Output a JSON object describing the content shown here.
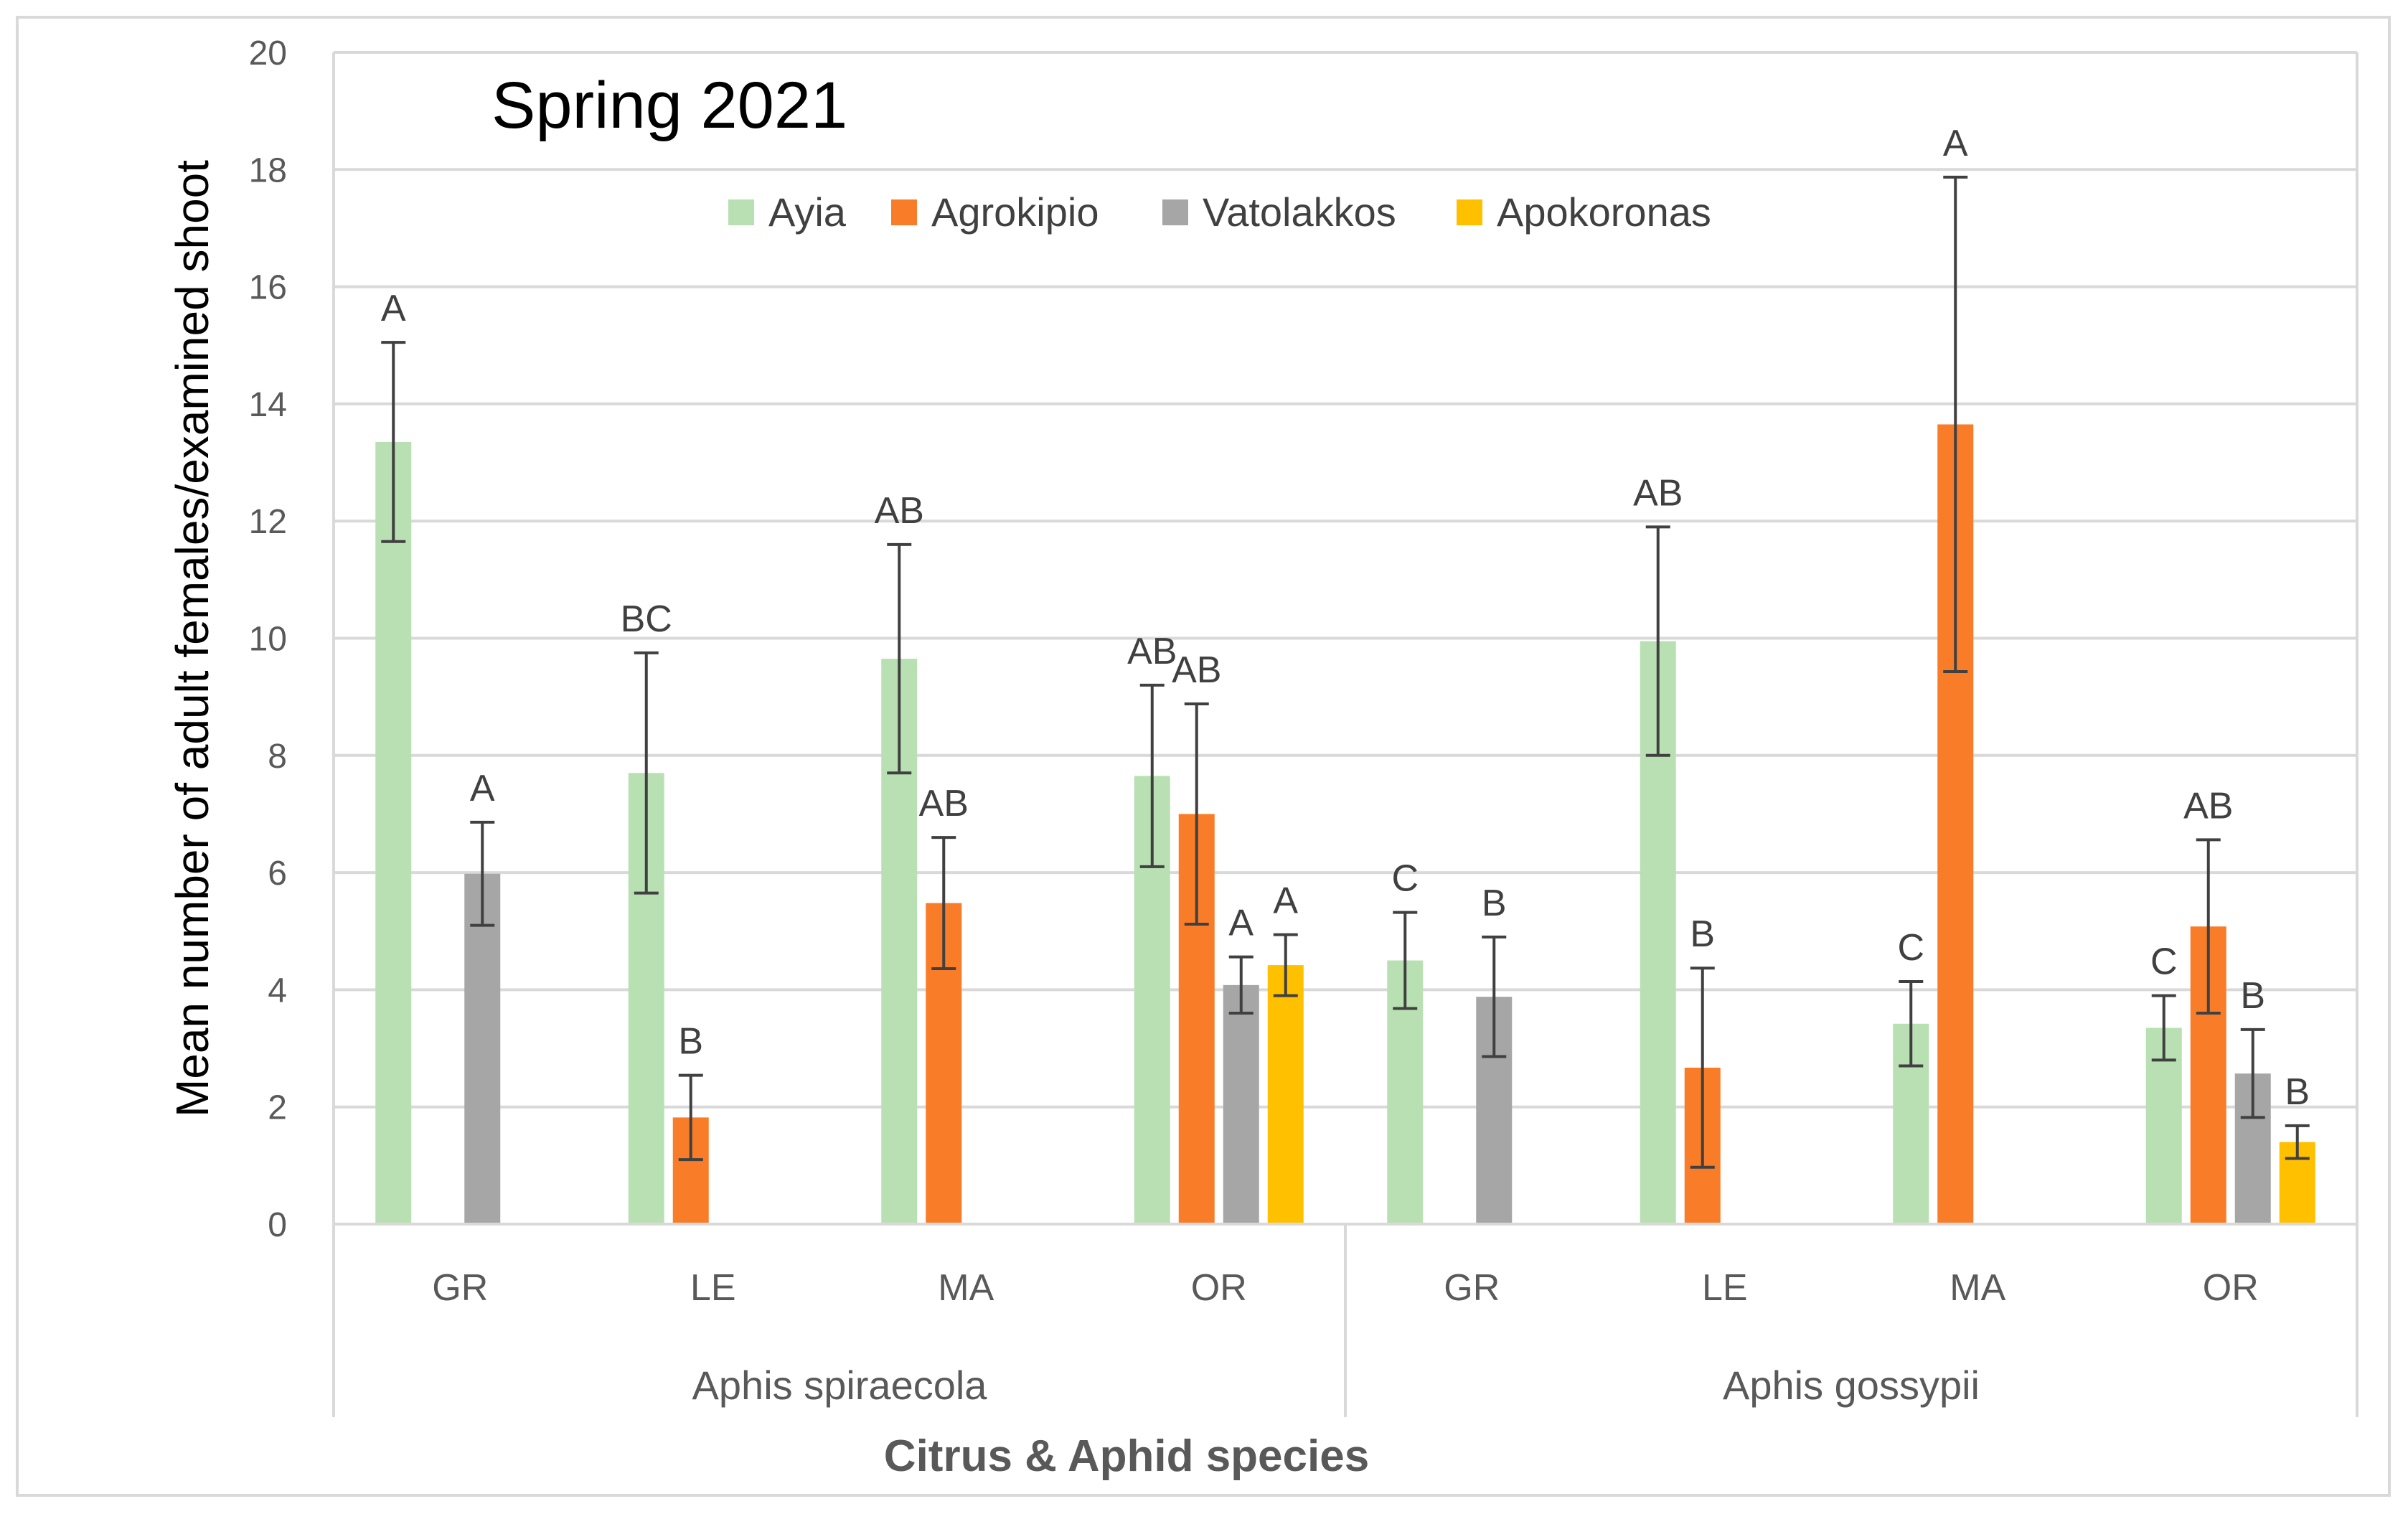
{
  "chart_data": {
    "type": "bar",
    "title": "Spring 2021",
    "xlabel": "Citrus & Aphid species",
    "ylabel": "Mean number of adult  females/examined shoot",
    "ylim": [
      0,
      20
    ],
    "yticks": [
      "0",
      "2",
      "4",
      "6",
      "8",
      "10",
      "12",
      "14",
      "16",
      "18",
      "20"
    ],
    "grid": true,
    "legend_position": "top",
    "groups": [
      {
        "label": "Aphis spiraecola",
        "categories": [
          "GR",
          "LE",
          "MA",
          "OR"
        ]
      },
      {
        "label": "Aphis gossypii",
        "categories": [
          "GR",
          "LE",
          "MA",
          "OR"
        ]
      }
    ],
    "categories": [
      "GR",
      "LE",
      "MA",
      "OR",
      "GR",
      "LE",
      "MA",
      "OR"
    ],
    "series": [
      {
        "name": "Ayia",
        "color": "#b9e0b3",
        "values": [
          13.35,
          7.7,
          9.65,
          7.65,
          4.5,
          9.95,
          3.42,
          3.35
        ],
        "errors": [
          1.7,
          2.05,
          1.95,
          1.55,
          0.82,
          1.95,
          0.72,
          0.55
        ],
        "letters": [
          "A",
          "BC",
          "AB",
          "AB",
          "C",
          "AB",
          "C",
          "C"
        ]
      },
      {
        "name": "Agrokipio",
        "color": "#f97d28",
        "values": [
          null,
          1.82,
          5.48,
          7.0,
          null,
          2.67,
          13.65,
          5.08
        ],
        "errors": [
          null,
          0.72,
          1.12,
          1.88,
          null,
          1.7,
          4.22,
          1.48
        ],
        "letters": [
          "",
          "B",
          "AB",
          "AB",
          "",
          "B",
          "A",
          "AB"
        ]
      },
      {
        "name": "Vatolakkos",
        "color": "#a6a6a6",
        "values": [
          5.98,
          null,
          null,
          4.08,
          3.88,
          null,
          null,
          2.57
        ],
        "errors": [
          0.88,
          null,
          null,
          0.48,
          1.02,
          null,
          null,
          0.75
        ],
        "letters": [
          "A",
          "",
          "",
          "A",
          "B",
          "",
          "",
          "B"
        ]
      },
      {
        "name": "Apokoronas",
        "color": "#ffc000",
        "values": [
          null,
          null,
          null,
          4.42,
          null,
          null,
          null,
          1.4
        ],
        "errors": [
          null,
          null,
          null,
          0.52,
          null,
          null,
          null,
          0.28
        ],
        "letters": [
          "",
          "",
          "",
          "A",
          "",
          "",
          "",
          "B"
        ]
      }
    ]
  }
}
